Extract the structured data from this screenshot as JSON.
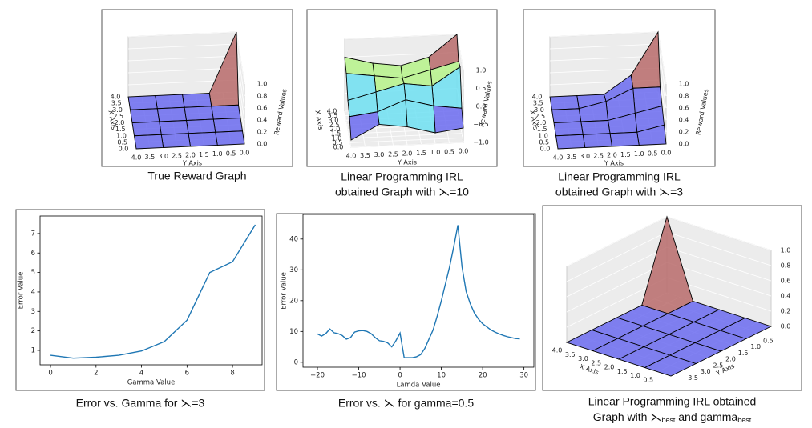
{
  "chart_data": [
    {
      "type": "surface3d",
      "caption": [
        "True Reward Graph"
      ],
      "x": [
        0,
        1,
        2,
        3,
        4
      ],
      "y": [
        0,
        1,
        2,
        3,
        4
      ],
      "z": [
        [
          0,
          0,
          0,
          0,
          0
        ],
        [
          0,
          0,
          0,
          0,
          0
        ],
        [
          0,
          0,
          0,
          0,
          0
        ],
        [
          0,
          0,
          0,
          0,
          0
        ],
        [
          1,
          0,
          0,
          0,
          0
        ]
      ],
      "xlim": [
        0,
        4
      ],
      "ylim": [
        0,
        4
      ],
      "zlim": [
        0,
        1
      ],
      "xticks": [
        {
          "value": 0,
          "label": "0.0"
        },
        0.5,
        {
          "value": 1,
          "label": "1.0"
        },
        1.5,
        {
          "value": 2,
          "label": "2.0"
        },
        2.5,
        {
          "value": 3,
          "label": "3.0"
        },
        3.5,
        {
          "value": 4,
          "label": "4.0"
        }
      ],
      "yticks": [
        {
          "value": 0,
          "label": "0.0"
        },
        0.5,
        {
          "value": 1,
          "label": "1.0"
        },
        1.5,
        {
          "value": 2,
          "label": "2.0"
        },
        2.5,
        {
          "value": 3,
          "label": "3.0"
        },
        3.5,
        {
          "value": 4,
          "label": "4.0"
        }
      ],
      "zticks": [
        {
          "value": 0,
          "label": "0.0"
        },
        0.2,
        0.4,
        0.6,
        0.8,
        {
          "value": 1,
          "label": "1.0"
        }
      ],
      "xlabel": "X Axis",
      "ylabel": "Y Axis",
      "zlabel": "Reward Values",
      "colorscale": [
        "#6b6bf0",
        "#6fe0f2",
        "#b6f38a",
        "#f2f279",
        "#b86b6b"
      ],
      "pane_color": "#ececec"
    },
    {
      "type": "surface3d",
      "caption": [
        "Linear Programming IRL",
        "obtained Graph with ⋋=10"
      ],
      "x": [
        0,
        1,
        2,
        3,
        4
      ],
      "y": [
        0,
        1,
        2,
        3,
        4
      ],
      "z": [
        [
          -0.6,
          -0.7,
          -0.5,
          -0.4,
          -0.8
        ],
        [
          -0.3,
          -0.2,
          0.0,
          -0.3,
          -0.4
        ],
        [
          0.6,
          0.1,
          0.2,
          0.0,
          -0.2
        ],
        [
          0.5,
          0.3,
          0.1,
          0.2,
          0.3
        ],
        [
          1.0,
          0.4,
          0.2,
          0.3,
          0.5
        ]
      ],
      "xlim": [
        0,
        4
      ],
      "ylim": [
        0,
        4
      ],
      "zlim": [
        -1,
        1
      ],
      "xticks": [
        {
          "value": 0,
          "label": "0.0"
        },
        0.5,
        {
          "value": 1,
          "label": "1.0"
        },
        1.5,
        {
          "value": 2,
          "label": "2.0"
        },
        2.5,
        {
          "value": 3,
          "label": "3.0"
        },
        3.5,
        {
          "value": 4,
          "label": "4.0"
        }
      ],
      "yticks": [
        {
          "value": 0,
          "label": "0.0"
        },
        0.5,
        {
          "value": 1,
          "label": "1.0"
        },
        1.5,
        {
          "value": 2,
          "label": "2.0"
        },
        2.5,
        {
          "value": 3,
          "label": "3.0"
        },
        3.5,
        {
          "value": 4,
          "label": "4.0"
        }
      ],
      "zticks": [
        {
          "value": -1,
          "label": "−1.0"
        },
        {
          "value": -0.5,
          "label": "−0.5"
        },
        {
          "value": 0,
          "label": "0.0"
        },
        0.5,
        {
          "value": 1,
          "label": "1.0"
        }
      ],
      "xlabel": "X Axis",
      "ylabel": "Y Axis",
      "zlabel": "Reward Values",
      "colorscale": [
        "#6b6bf0",
        "#6fe0f2",
        "#b6f38a",
        "#f2f279",
        "#b86b6b"
      ],
      "pane_color": "#ececec"
    },
    {
      "type": "surface3d",
      "caption": [
        "Linear Programming IRL",
        "obtained Graph with ⋋=3"
      ],
      "x": [
        0,
        1,
        2,
        3,
        4
      ],
      "y": [
        0,
        1,
        2,
        3,
        4
      ],
      "z": [
        [
          0,
          0,
          0,
          0,
          0
        ],
        [
          0.1,
          0,
          0,
          0,
          0
        ],
        [
          0.2,
          0.1,
          0,
          0,
          0
        ],
        [
          0.3,
          0.3,
          0.1,
          0,
          0
        ],
        [
          1.0,
          0.3,
          0,
          0,
          0
        ]
      ],
      "xlim": [
        0,
        4
      ],
      "ylim": [
        0,
        4
      ],
      "zlim": [
        0,
        1
      ],
      "xticks": [
        {
          "value": 0,
          "label": "0.0"
        },
        0.5,
        {
          "value": 1,
          "label": "1.0"
        },
        1.5,
        {
          "value": 2,
          "label": "2.0"
        },
        2.5,
        {
          "value": 3,
          "label": "3.0"
        },
        3.5,
        {
          "value": 4,
          "label": "4.0"
        }
      ],
      "yticks": [
        {
          "value": 0,
          "label": "0.0"
        },
        0.5,
        {
          "value": 1,
          "label": "1.0"
        },
        1.5,
        {
          "value": 2,
          "label": "2.0"
        },
        2.5,
        {
          "value": 3,
          "label": "3.0"
        },
        3.5,
        {
          "value": 4,
          "label": "4.0"
        }
      ],
      "zticks": [
        {
          "value": 0,
          "label": "0.0"
        },
        0.2,
        0.4,
        0.6,
        0.8,
        {
          "value": 1,
          "label": "1.0"
        }
      ],
      "xlabel": "X Axis",
      "ylabel": "Y Axis",
      "zlabel": "Reward Values",
      "colorscale": [
        "#6b6bf0",
        "#6fe0f2",
        "#b6f38a",
        "#f2f279",
        "#b86b6b"
      ],
      "pane_color": "#ececec"
    },
    {
      "type": "line",
      "caption": [
        "Error vs. Gamma for ⋋=3"
      ],
      "x": [
        0,
        1,
        2,
        3,
        4,
        5,
        6,
        7,
        8,
        9
      ],
      "values": [
        0.75,
        0.6,
        0.65,
        0.75,
        0.97,
        1.45,
        2.55,
        5.0,
        5.55,
        7.45
      ],
      "xlim": [
        -0.46,
        9.3
      ],
      "ylim": [
        0.26,
        7.9
      ],
      "xticks": [
        0,
        2,
        4,
        6,
        8
      ],
      "yticks": [
        1,
        2,
        3,
        4,
        5,
        6,
        7
      ],
      "xlabel": "Gamma Value",
      "ylabel": "Error Value",
      "color": "#1f77b4"
    },
    {
      "type": "line",
      "caption": [
        "Error vs. ⋋ for gamma=0.5"
      ],
      "x": [
        -20,
        -19,
        -18,
        -17,
        -16,
        -15,
        -14,
        -13,
        -12,
        -11,
        -10,
        -9,
        -8,
        -7,
        -6,
        -5,
        -4,
        -3,
        -2,
        -1,
        0,
        1,
        2,
        3,
        4,
        5,
        6,
        7,
        8,
        9,
        10,
        11,
        12,
        13,
        14,
        15,
        16,
        17,
        18,
        19,
        20,
        21,
        22,
        23,
        24,
        25,
        26,
        27,
        28,
        29
      ],
      "values": [
        9.2,
        8.5,
        9.3,
        10.8,
        9.6,
        9.3,
        8.7,
        7.5,
        8.0,
        9.8,
        10.2,
        10.3,
        10.0,
        9.3,
        8.0,
        7.0,
        6.8,
        6.3,
        5.0,
        7.0,
        9.5,
        1.5,
        1.5,
        1.5,
        1.8,
        2.5,
        4.5,
        7.5,
        10.5,
        15,
        20,
        25.5,
        31,
        37.5,
        44.5,
        31,
        23,
        19,
        16,
        14,
        12.5,
        11.5,
        10.5,
        9.8,
        9.2,
        8.7,
        8.3,
        8.0,
        7.7,
        7.6
      ],
      "xlim": [
        -23.5,
        32.4
      ],
      "ylim": [
        -1.6,
        48
      ],
      "xticks": [
        {
          "value": -20,
          "label": "−20"
        },
        {
          "value": -10,
          "label": "−10"
        },
        0,
        10,
        20,
        30
      ],
      "yticks": [
        0,
        10,
        20,
        30,
        40
      ],
      "xlabel": "Lamda Value",
      "ylabel": "Error Value",
      "color": "#1f77b4"
    },
    {
      "type": "surface3d",
      "caption": [
        "Linear Programming IRL obtained",
        [
          "Graph with ⋋",
          "best",
          " and gamma",
          "best"
        ]
      ],
      "x": [
        0,
        1,
        2,
        3,
        4
      ],
      "y": [
        0,
        1,
        2,
        3,
        4
      ],
      "z": [
        [
          0,
          0,
          0,
          0,
          0
        ],
        [
          0,
          0,
          0,
          0,
          0
        ],
        [
          0,
          0,
          0,
          0,
          0
        ],
        [
          0,
          0,
          0,
          0,
          0
        ],
        [
          1,
          0,
          0,
          0,
          0
        ]
      ],
      "xlim": [
        0,
        4
      ],
      "ylim": [
        0,
        4
      ],
      "zlim": [
        0,
        1
      ],
      "xticks": [
        0.5,
        {
          "value": 1,
          "label": "1.0"
        },
        1.5,
        {
          "value": 2,
          "label": "2.0"
        },
        2.5,
        {
          "value": 3,
          "label": "3.0"
        },
        3.5,
        {
          "value": 4,
          "label": "4.0"
        }
      ],
      "yticks": [
        0.5,
        {
          "value": 1,
          "label": "1.0"
        },
        1.5,
        {
          "value": 2,
          "label": "2.0"
        },
        2.5,
        {
          "value": 3,
          "label": "3.0"
        },
        3.5
      ],
      "zticks": [
        {
          "value": 0,
          "label": "0.0"
        },
        0.2,
        0.4,
        0.6,
        0.8,
        {
          "value": 1,
          "label": "1.0"
        }
      ],
      "xlabel": "X Axis",
      "ylabel": "Y Axis",
      "colorscale": [
        "#6b6bf0",
        "#6fe0f2",
        "#b6f38a",
        "#f2f279",
        "#b86b6b"
      ],
      "pane_color": "#ececec"
    }
  ]
}
